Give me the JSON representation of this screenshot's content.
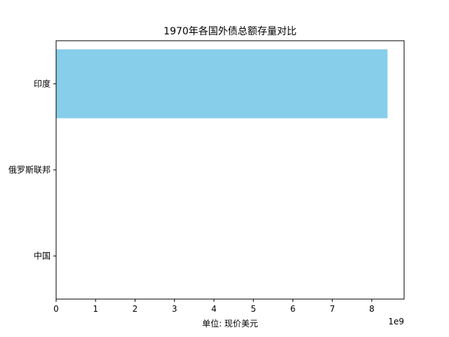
{
  "chart_data": {
    "type": "bar",
    "orientation": "horizontal",
    "title": "1970年各国外债总额存量对比",
    "xlabel": "单位: 现价美元",
    "ylabel": "",
    "categories": [
      "中国",
      "俄罗斯联邦",
      "印度"
    ],
    "values": [
      0,
      0,
      8400000000
    ],
    "xlim": [
      0,
      8820000000
    ],
    "x_ticks": [
      0,
      1,
      2,
      3,
      4,
      5,
      6,
      7,
      8
    ],
    "x_offset_label": "1e9",
    "bar_color": "#87CEEB",
    "grid": false,
    "legend": "none"
  }
}
